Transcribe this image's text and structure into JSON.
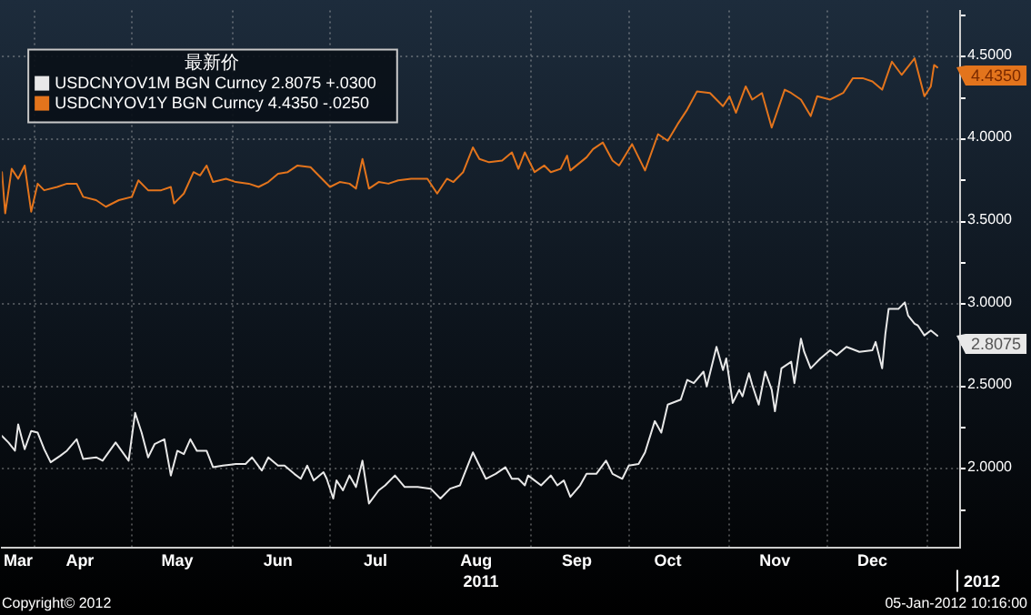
{
  "chart_data": {
    "type": "line",
    "legend": "top left",
    "legend_title": "最新价",
    "grid": true,
    "line_style": "solid",
    "marker": "none",
    "xlim": [
      "2011-03-22",
      "2012-01-11"
    ],
    "xticks": [
      {
        "value": "2011-03-27",
        "label": "Mar"
      },
      {
        "value": "2011-04-01",
        "label": null
      },
      {
        "value": "2011-04-15",
        "label": "Apr"
      },
      {
        "value": "2011-05-01",
        "label": null
      },
      {
        "value": "2011-05-15",
        "label": "May"
      },
      {
        "value": "2011-06-01",
        "label": null
      },
      {
        "value": "2011-06-15",
        "label": "Jun"
      },
      {
        "value": "2011-07-01",
        "label": null
      },
      {
        "value": "2011-07-15",
        "label": "Jul"
      },
      {
        "value": "2011-08-01",
        "label": null
      },
      {
        "value": "2011-08-15",
        "label": "Aug"
      },
      {
        "value": "2011-09-01",
        "label": null
      },
      {
        "value": "2011-09-15",
        "label": "Sep"
      },
      {
        "value": "2011-10-01",
        "label": null
      },
      {
        "value": "2011-10-13",
        "label": "Oct"
      },
      {
        "value": "2011-11-01",
        "label": null
      },
      {
        "value": "2011-11-15",
        "label": "Nov"
      },
      {
        "value": "2011-12-01",
        "label": null
      },
      {
        "value": "2011-12-15",
        "label": "Dec"
      },
      {
        "value": "2012-01-01",
        "label": null
      }
    ],
    "ylim": [
      1.52,
      4.78
    ],
    "yticks": [
      {
        "value": 1.75,
        "label": null
      },
      {
        "value": 2,
        "label": "2.0000"
      },
      {
        "value": 2.25,
        "label": null
      },
      {
        "value": 2.5,
        "label": "2.5000"
      },
      {
        "value": 2.75,
        "label": null
      },
      {
        "value": 3,
        "label": "3.0000"
      },
      {
        "value": 3.25,
        "label": null
      },
      {
        "value": 3.5,
        "label": "3.5000"
      },
      {
        "value": 3.75,
        "label": null
      },
      {
        "value": 4,
        "label": "4.0000"
      },
      {
        "value": 4.25,
        "label": null
      },
      {
        "value": 4.5,
        "label": "4.5000"
      },
      {
        "value": 4.75,
        "label": null
      }
    ],
    "series": [
      {
        "name": "USDCNYOV1M BGN Curncy 2.8075 +.0300",
        "color": "#e8e8e8",
        "x": [
          "2011-03-22",
          "2011-03-24",
          "2011-03-26",
          "2011-03-27",
          "2011-03-29",
          "2011-03-31",
          "2011-04-02",
          "2011-04-04",
          "2011-04-06",
          "2011-04-09",
          "2011-04-11",
          "2011-04-14",
          "2011-04-16",
          "2011-04-20",
          "2011-04-22",
          "2011-04-26",
          "2011-04-30",
          "2011-05-02",
          "2011-05-04",
          "2011-05-06",
          "2011-05-08",
          "2011-05-11",
          "2011-05-13",
          "2011-05-15",
          "2011-05-17",
          "2011-05-19",
          "2011-05-21",
          "2011-05-24",
          "2011-05-26",
          "2011-05-29",
          "2011-06-02",
          "2011-06-05",
          "2011-06-07",
          "2011-06-10",
          "2011-06-12",
          "2011-06-15",
          "2011-06-17",
          "2011-06-20",
          "2011-06-22",
          "2011-06-24",
          "2011-06-26",
          "2011-06-29",
          "2011-06-30",
          "2011-07-02",
          "2011-07-03",
          "2011-07-05",
          "2011-07-07",
          "2011-07-09",
          "2011-07-11",
          "2011-07-13",
          "2011-07-16",
          "2011-07-18",
          "2011-07-21",
          "2011-07-24",
          "2011-07-28",
          "2011-08-01",
          "2011-08-04",
          "2011-08-07",
          "2011-08-10",
          "2011-08-14",
          "2011-08-16",
          "2011-08-18",
          "2011-08-21",
          "2011-08-24",
          "2011-08-26",
          "2011-08-28",
          "2011-08-30",
          "2011-08-31",
          "2011-09-02",
          "2011-09-04",
          "2011-09-07",
          "2011-09-09",
          "2011-09-11",
          "2011-09-13",
          "2011-09-16",
          "2011-09-18",
          "2011-09-21",
          "2011-09-24",
          "2011-09-26",
          "2011-09-29",
          "2011-10-01",
          "2011-10-04",
          "2011-10-06",
          "2011-10-09",
          "2011-10-11",
          "2011-10-13",
          "2011-10-17",
          "2011-10-19",
          "2011-10-21",
          "2011-10-24",
          "2011-10-25",
          "2011-10-28",
          "2011-10-30",
          "2011-10-31",
          "2011-11-02",
          "2011-11-04",
          "2011-11-05",
          "2011-11-07",
          "2011-11-08",
          "2011-11-10",
          "2011-11-12",
          "2011-11-14",
          "2011-11-15",
          "2011-11-17",
          "2011-11-20",
          "2011-11-21",
          "2011-11-23",
          "2011-11-24",
          "2011-11-26",
          "2011-11-29",
          "2011-12-02",
          "2011-12-04",
          "2011-12-07",
          "2011-12-11",
          "2011-12-15",
          "2011-12-16",
          "2011-12-18",
          "2011-12-19",
          "2011-12-20",
          "2011-12-23",
          "2011-12-25",
          "2011-12-26",
          "2011-12-28",
          "2011-12-29",
          "2011-12-31",
          "2012-01-02",
          "2012-01-04"
        ],
        "values": [
          2.2,
          2.16,
          2.11,
          2.27,
          2.12,
          2.23,
          2.22,
          2.12,
          2.04,
          2.08,
          2.11,
          2.18,
          2.06,
          2.07,
          2.05,
          2.16,
          2.05,
          2.34,
          2.22,
          2.07,
          2.15,
          2.18,
          1.96,
          2.11,
          2.09,
          2.18,
          2.11,
          2.11,
          2.01,
          2.02,
          2.03,
          2.03,
          2.07,
          1.99,
          2.07,
          2.02,
          2.02,
          1.97,
          1.94,
          2.02,
          1.93,
          1.98,
          1.94,
          1.82,
          1.93,
          1.87,
          1.96,
          1.89,
          2.05,
          1.79,
          1.87,
          1.9,
          1.96,
          1.89,
          1.89,
          1.88,
          1.82,
          1.88,
          1.9,
          2.1,
          2.02,
          1.94,
          1.97,
          2.01,
          1.94,
          1.94,
          1.9,
          1.96,
          1.93,
          1.9,
          1.96,
          1.9,
          1.93,
          1.83,
          1.9,
          1.97,
          1.97,
          2.05,
          1.97,
          1.94,
          2.02,
          2.03,
          2.1,
          2.29,
          2.22,
          2.39,
          2.42,
          2.54,
          2.52,
          2.59,
          2.5,
          2.74,
          2.6,
          2.67,
          2.4,
          2.48,
          2.44,
          2.58,
          2.51,
          2.39,
          2.59,
          2.48,
          2.35,
          2.61,
          2.65,
          2.52,
          2.79,
          2.71,
          2.61,
          2.67,
          2.72,
          2.69,
          2.74,
          2.71,
          2.72,
          2.77,
          2.61,
          2.82,
          2.97,
          2.97,
          3.01,
          2.93,
          2.88,
          2.87,
          2.81,
          2.84,
          2.8075
        ]
      },
      {
        "name": "USDCNYOV1Y BGN Curncy 4.4350 -.0250",
        "color": "#e3741c",
        "x": [
          "2011-03-22",
          "2011-03-23",
          "2011-03-25",
          "2011-03-27",
          "2011-03-29",
          "2011-03-31",
          "2011-04-02",
          "2011-04-04",
          "2011-04-08",
          "2011-04-11",
          "2011-04-14",
          "2011-04-16",
          "2011-04-20",
          "2011-04-23",
          "2011-04-27",
          "2011-05-01",
          "2011-05-03",
          "2011-05-06",
          "2011-05-10",
          "2011-05-13",
          "2011-05-14",
          "2011-05-17",
          "2011-05-20",
          "2011-05-22",
          "2011-05-24",
          "2011-05-26",
          "2011-05-30",
          "2011-06-02",
          "2011-06-06",
          "2011-06-09",
          "2011-06-12",
          "2011-06-15",
          "2011-06-18",
          "2011-06-21",
          "2011-06-25",
          "2011-06-29",
          "2011-07-01",
          "2011-07-04",
          "2011-07-07",
          "2011-07-09",
          "2011-07-11",
          "2011-07-13",
          "2011-07-16",
          "2011-07-19",
          "2011-07-22",
          "2011-07-26",
          "2011-07-31",
          "2011-08-03",
          "2011-08-06",
          "2011-08-08",
          "2011-08-11",
          "2011-08-14",
          "2011-08-16",
          "2011-08-19",
          "2011-08-23",
          "2011-08-26",
          "2011-08-28",
          "2011-08-30",
          "2011-09-02",
          "2011-09-05",
          "2011-09-07",
          "2011-09-10",
          "2011-09-12",
          "2011-09-13",
          "2011-09-18",
          "2011-09-20",
          "2011-09-23",
          "2011-09-26",
          "2011-09-28",
          "2011-10-02",
          "2011-10-06",
          "2011-10-10",
          "2011-10-13",
          "2011-10-16",
          "2011-10-19",
          "2011-10-22",
          "2011-10-26",
          "2011-10-30",
          "2011-11-01",
          "2011-11-03",
          "2011-11-06",
          "2011-11-08",
          "2011-11-11",
          "2011-11-14",
          "2011-11-18",
          "2011-11-20",
          "2011-11-23",
          "2011-11-26",
          "2011-11-28",
          "2011-12-02",
          "2011-12-06",
          "2011-12-09",
          "2011-12-12",
          "2011-12-15",
          "2011-12-18",
          "2011-12-21",
          "2011-12-24",
          "2011-12-28",
          "2011-12-31",
          "2012-01-02",
          "2012-01-03",
          "2012-01-04"
        ],
        "values": [
          3.8,
          3.55,
          3.82,
          3.76,
          3.84,
          3.56,
          3.73,
          3.69,
          3.71,
          3.73,
          3.73,
          3.65,
          3.63,
          3.59,
          3.63,
          3.65,
          3.75,
          3.69,
          3.69,
          3.71,
          3.61,
          3.67,
          3.8,
          3.78,
          3.84,
          3.74,
          3.76,
          3.74,
          3.73,
          3.71,
          3.74,
          3.79,
          3.8,
          3.84,
          3.83,
          3.75,
          3.71,
          3.74,
          3.73,
          3.7,
          3.88,
          3.7,
          3.74,
          3.73,
          3.75,
          3.76,
          3.76,
          3.67,
          3.76,
          3.74,
          3.8,
          3.95,
          3.88,
          3.86,
          3.87,
          3.92,
          3.82,
          3.92,
          3.8,
          3.84,
          3.8,
          3.82,
          3.9,
          3.81,
          3.89,
          3.94,
          3.98,
          3.87,
          3.84,
          3.97,
          3.81,
          4.03,
          3.99,
          4.09,
          4.18,
          4.29,
          4.28,
          4.2,
          4.26,
          4.16,
          4.32,
          4.24,
          4.28,
          4.07,
          4.3,
          4.28,
          4.24,
          4.14,
          4.26,
          4.24,
          4.28,
          4.37,
          4.37,
          4.35,
          4.3,
          4.47,
          4.39,
          4.49,
          4.26,
          4.32,
          4.45,
          4.435
        ]
      }
    ],
    "annotations": [
      "2011",
      "2012",
      "Copyright© 2012",
      "05-Jan-2012 10:16:00",
      {
        "text": "2.8075",
        "x": "2012-01-04",
        "y": 2.8075
      },
      {
        "text": "4.4350",
        "x": "2012-01-04",
        "y": 4.435
      }
    ]
  }
}
